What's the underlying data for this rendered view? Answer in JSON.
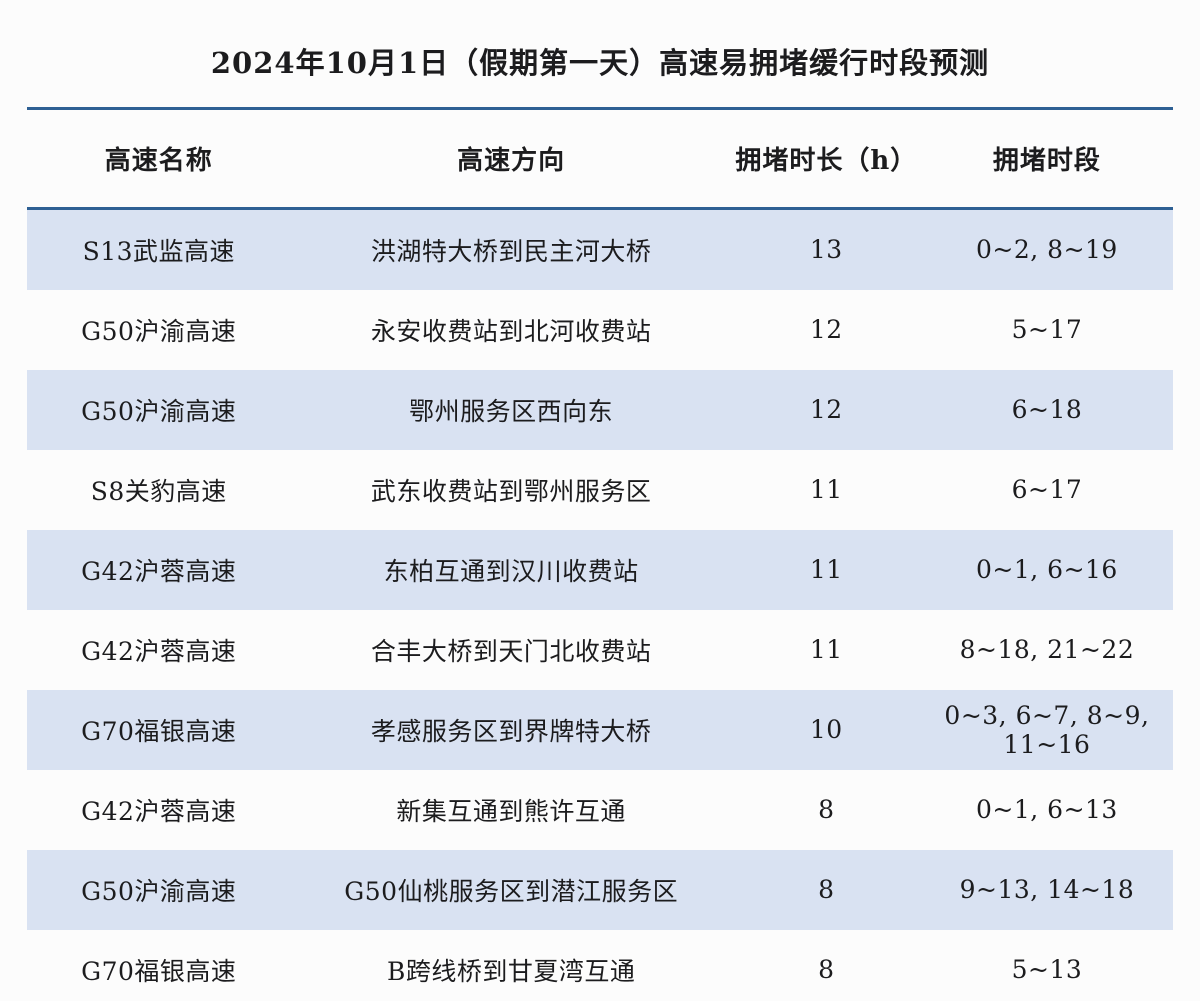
{
  "page": {
    "title": "2024年10月1日（假期第一天）高速易拥堵缓行时段预测"
  },
  "colors": {
    "rule_blue": "#2e6094",
    "stripe_blue": "#d9e2f2",
    "background": "#fcfcfc",
    "text": "#1c1c1e"
  },
  "table": {
    "columns": [
      "高速名称",
      "高速方向",
      "拥堵时长（h）",
      "拥堵时段"
    ],
    "rows": [
      {
        "name": "S13武监高速",
        "direction": "洪湖特大桥到民主河大桥",
        "duration": "13",
        "period": "0~2, 8~19"
      },
      {
        "name": "G50沪渝高速",
        "direction": "永安收费站到北河收费站",
        "duration": "12",
        "period": "5~17"
      },
      {
        "name": "G50沪渝高速",
        "direction": "鄂州服务区西向东",
        "duration": "12",
        "period": "6~18"
      },
      {
        "name": "S8关豹高速",
        "direction": "武东收费站到鄂州服务区",
        "duration": "11",
        "period": "6~17"
      },
      {
        "name": "G42沪蓉高速",
        "direction": "东柏互通到汉川收费站",
        "duration": "11",
        "period": "0~1, 6~16"
      },
      {
        "name": "G42沪蓉高速",
        "direction": "合丰大桥到天门北收费站",
        "duration": "11",
        "period": "8~18, 21~22"
      },
      {
        "name": "G70福银高速",
        "direction": "孝感服务区到界牌特大桥",
        "duration": "10",
        "period": "0~3, 6~7, 8~9, 11~16"
      },
      {
        "name": "G42沪蓉高速",
        "direction": "新集互通到熊许互通",
        "duration": "8",
        "period": "0~1, 6~13"
      },
      {
        "name": "G50沪渝高速",
        "direction": "G50仙桃服务区到潜江服务区",
        "duration": "8",
        "period": "9~13, 14~18"
      },
      {
        "name": "G70福银高速",
        "direction": "B跨线桥到甘夏湾互通",
        "duration": "8",
        "period": "5~13"
      }
    ]
  }
}
